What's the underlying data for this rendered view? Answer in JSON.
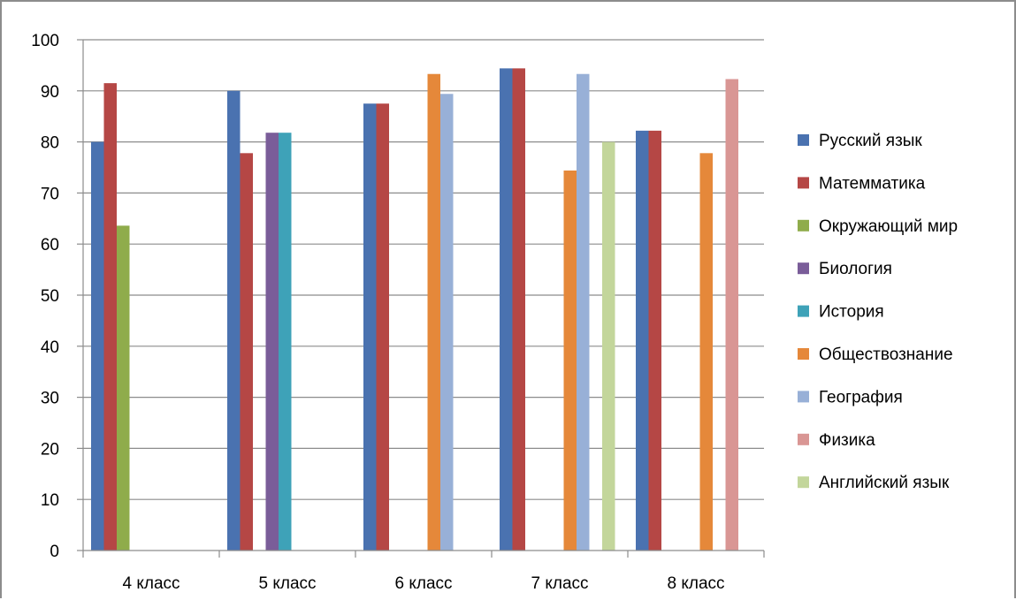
{
  "chart_data": {
    "type": "bar",
    "title": "",
    "xlabel": "",
    "ylabel": "",
    "categories": [
      "4 класс",
      "5 класс",
      "6 класс",
      "7 класс",
      "8 класс"
    ],
    "ylim": [
      0,
      100
    ],
    "yticks": [
      0,
      10,
      20,
      30,
      40,
      50,
      60,
      70,
      80,
      90,
      100
    ],
    "grid": true,
    "legend_position": "right",
    "series": [
      {
        "name": "Русский язык",
        "color": "#4a72b0",
        "values": [
          80,
          90,
          87.5,
          94.4,
          82.2
        ]
      },
      {
        "name": "Матемматика",
        "color": "#b54745",
        "values": [
          91.5,
          77.8,
          87.5,
          94.4,
          82.2
        ]
      },
      {
        "name": "Окружающий мир",
        "color": "#8fac4b",
        "values": [
          63.6,
          null,
          null,
          null,
          null
        ]
      },
      {
        "name": "Биология",
        "color": "#7a5d99",
        "values": [
          null,
          81.8,
          null,
          null,
          null
        ]
      },
      {
        "name": "История",
        "color": "#3ea2b8",
        "values": [
          null,
          81.8,
          null,
          null,
          null
        ]
      },
      {
        "name": "Обществознание",
        "color": "#e5883a",
        "values": [
          null,
          null,
          93.3,
          74.4,
          77.8
        ]
      },
      {
        "name": "География",
        "color": "#98b0d7",
        "values": [
          null,
          null,
          89.4,
          93.3,
          null
        ]
      },
      {
        "name": "Физика",
        "color": "#d99694",
        "values": [
          null,
          null,
          null,
          null,
          92.3
        ]
      },
      {
        "name": "Английский язык",
        "color": "#c3d69b",
        "values": [
          null,
          null,
          null,
          80,
          null
        ]
      }
    ]
  }
}
